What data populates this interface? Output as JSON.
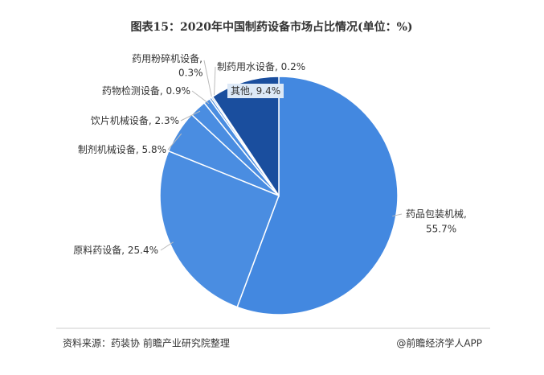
{
  "chart_data": {
    "type": "pie",
    "title": "图表15：2020年中国制药设备市场占比情况(单位：%)",
    "categories": [
      "药品包装机械",
      "原料药设备",
      "制剂机械设备",
      "饮片机械设备",
      "药物检测设备",
      "药用粉碎机设备",
      "制药用水设备",
      "其他"
    ],
    "values": [
      55.7,
      25.4,
      5.8,
      2.3,
      0.9,
      0.3,
      0.2,
      9.4
    ],
    "value_labels": [
      "55.7%",
      "25.4%",
      "5.8%",
      "2.3%",
      "0.9%",
      "0.3%",
      "0.2%",
      "9.4%"
    ],
    "label_separator": ", ",
    "colors": [
      "#4388e0",
      "#4a8de1",
      "#4a8de1",
      "#4a8de1",
      "#4a8de1",
      "#4a8de1",
      "#4a8de1",
      "#1a4e9e"
    ]
  },
  "footer": {
    "source": "资料来源：药装协 前瞻产业研究院整理",
    "brand": "@前瞻经济学人APP"
  }
}
